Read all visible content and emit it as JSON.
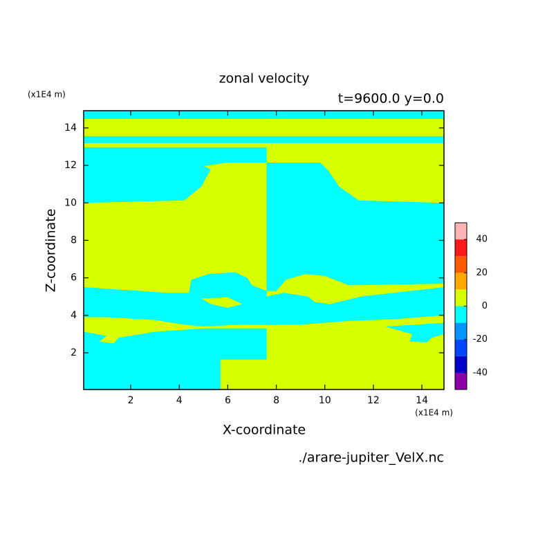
{
  "chart_data": {
    "type": "contour",
    "title": "zonal velocity",
    "subtitle": "t=9600.0 y=0.0",
    "xlabel": "X-coordinate",
    "ylabel": "Z-coordinate",
    "x_unit": "(x1E4 m)",
    "y_unit": "(x1E4 m)",
    "source": "./arare-jupiter_VelX.nc",
    "xlim": [
      0.06,
      14.91
    ],
    "ylim": [
      0.04,
      14.92
    ],
    "xticks": [
      2,
      4,
      6,
      8,
      10,
      12,
      14
    ],
    "yticks": [
      2,
      4,
      6,
      8,
      10,
      12,
      14
    ],
    "colorbar": {
      "levels": [
        -50,
        -40,
        -30,
        -20,
        -10,
        0,
        10,
        20,
        30,
        40,
        50
      ],
      "colors": [
        "#8c00a8",
        "#0000c8",
        "#0046ff",
        "#0096ff",
        "#00ffff",
        "#d7ff00",
        "#ffa800",
        "#ff5a00",
        "#ff1a1a",
        "#ffb4b4"
      ],
      "ticks": [
        -40,
        -20,
        0,
        20,
        40
      ]
    },
    "regions": [
      {
        "level": 0,
        "x": [
          0.06,
          14.91,
          14.91,
          0.06
        ],
        "z": [
          0.04,
          0.04,
          14.92,
          14.92
        ]
      },
      {
        "level": -10,
        "x": [
          0.06,
          14.91,
          14.91,
          0.06
        ],
        "z": [
          14.92,
          14.92,
          14.48,
          14.48
        ]
      },
      {
        "level": -10,
        "x": [
          0.06,
          14.91,
          14.91,
          0.06
        ],
        "z": [
          13.56,
          13.56,
          13.19,
          13.19
        ]
      },
      {
        "level": -10,
        "x": [
          0.06,
          7.6,
          7.6,
          0.06
        ],
        "z": [
          12.97,
          12.97,
          12.74,
          12.74
        ]
      },
      {
        "level": -10,
        "x": [
          0.06,
          7.6,
          7.6,
          6.0,
          5.0,
          5.3,
          4.9,
          4.2,
          0.06
        ],
        "z": [
          12.74,
          12.74,
          12.15,
          12.15,
          11.97,
          11.79,
          10.86,
          10.13,
          10.0
        ]
      },
      {
        "level": -10,
        "x": [
          7.6,
          9.8,
          10.1,
          10.6,
          11.4,
          14.91,
          14.91,
          11.0,
          10.0,
          9.2,
          8.4,
          8.0,
          7.6
        ],
        "z": [
          12.15,
          12.15,
          11.79,
          10.86,
          10.13,
          10.0,
          5.69,
          5.6,
          6.1,
          6.2,
          5.9,
          5.3,
          5.3
        ]
      },
      {
        "level": -10,
        "x": [
          7.6,
          8.3,
          9.3,
          9.6,
          10.2,
          11.5,
          14.91,
          14.91,
          13.0,
          11.0,
          9.0,
          7.6
        ],
        "z": [
          5.0,
          5.2,
          5.0,
          4.7,
          4.6,
          5.0,
          5.5,
          4.0,
          3.8,
          3.7,
          3.5,
          3.49
        ]
      },
      {
        "level": -10,
        "x": [
          0.06,
          3.5,
          4.4,
          4.5,
          5.2,
          6.3,
          6.8,
          7.0,
          7.6,
          7.6,
          6.5,
          5.0,
          4.2,
          3.0,
          1.0,
          0.06
        ],
        "z": [
          5.5,
          5.2,
          5.2,
          5.9,
          6.2,
          6.3,
          6.0,
          5.6,
          5.3,
          3.49,
          3.5,
          3.4,
          3.5,
          3.75,
          3.9,
          3.9
        ]
      },
      {
        "level": 0,
        "x": [
          4.9,
          6.0,
          6.6,
          6.0,
          5.3
        ],
        "z": [
          4.9,
          4.96,
          4.6,
          4.4,
          4.6
        ]
      },
      {
        "level": -10,
        "x": [
          0.06,
          1.0,
          0.7,
          1.3,
          1.5,
          3.0,
          5.0,
          7.6,
          7.6,
          5.7,
          5.7,
          0.06
        ],
        "z": [
          3.12,
          2.9,
          2.6,
          2.5,
          2.8,
          3.12,
          3.3,
          3.3,
          1.64,
          1.64,
          0.04,
          0.04
        ]
      },
      {
        "level": -10,
        "x": [
          14.91,
          14.91,
          14.4,
          14.2,
          13.5,
          13.6,
          12.5
        ],
        "z": [
          3.6,
          3.0,
          2.8,
          2.55,
          2.6,
          3.0,
          3.4
        ]
      }
    ]
  }
}
